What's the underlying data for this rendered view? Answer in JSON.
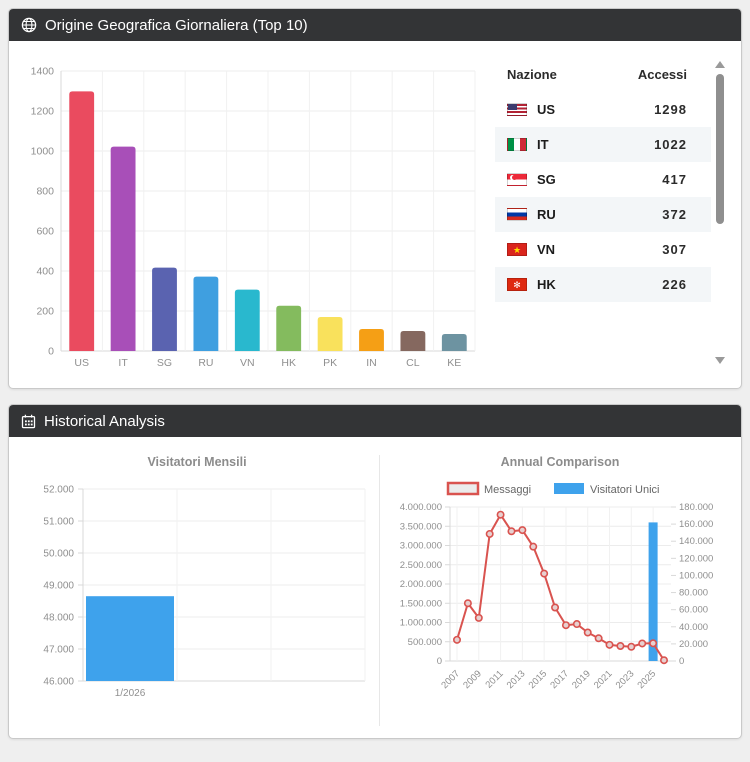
{
  "panel1": {
    "title": "Origine Geografica Giornaliera (Top 10)",
    "icon": "globe-icon",
    "table": {
      "columns": [
        "Nazione",
        "Accessi"
      ],
      "rows": [
        {
          "flag": "us",
          "code": "US",
          "accessi": "1298"
        },
        {
          "flag": "it",
          "code": "IT",
          "accessi": "1022"
        },
        {
          "flag": "sg",
          "code": "SG",
          "accessi": "417"
        },
        {
          "flag": "ru",
          "code": "RU",
          "accessi": "372"
        },
        {
          "flag": "vn",
          "code": "VN",
          "accessi": "307"
        },
        {
          "flag": "hk",
          "code": "HK",
          "accessi": "226"
        }
      ]
    }
  },
  "panel2": {
    "title": "Historical Analysis",
    "icon": "calendar-icon"
  },
  "chart_data": [
    {
      "id": "geo",
      "type": "bar",
      "title": "",
      "categories": [
        "US",
        "IT",
        "SG",
        "RU",
        "VN",
        "HK",
        "PK",
        "IN",
        "CL",
        "KE"
      ],
      "values": [
        1298,
        1022,
        417,
        372,
        307,
        226,
        170,
        110,
        100,
        85
      ],
      "colors": [
        "#ea4b5f",
        "#a84fb8",
        "#5a63b0",
        "#3f9fe0",
        "#29b8ce",
        "#84bb5e",
        "#f9e15c",
        "#f59f15",
        "#85685f",
        "#6d93a1"
      ],
      "xlabel": "",
      "ylabel": "",
      "ylim": [
        0,
        1400
      ],
      "ytick": 200,
      "grid": true
    },
    {
      "id": "monthly",
      "type": "bar",
      "title": "Visitatori Mensili",
      "categories": [
        "1/2026"
      ],
      "values": [
        48650
      ],
      "color": "#3ea2ec",
      "xlabel": "",
      "ylabel": "",
      "ylim": [
        46000,
        52000
      ],
      "ytick": 1000,
      "slots": 3,
      "grid": true,
      "tick_format": "dot-thousands"
    },
    {
      "id": "annual",
      "type": "combo",
      "title": "Annual Comparison",
      "x": [
        2007,
        2008,
        2009,
        2010,
        2011,
        2012,
        2013,
        2014,
        2015,
        2016,
        2017,
        2018,
        2019,
        2020,
        2021,
        2022,
        2023,
        2024,
        2025,
        2026
      ],
      "x_label_step": 2,
      "series": [
        {
          "name": "Messaggi",
          "type": "line",
          "axis": "left",
          "color": "#d9534f",
          "point_fill": "#e7d0d0",
          "values": [
            550000,
            1500000,
            1120000,
            3300000,
            3800000,
            3370000,
            3400000,
            2970000,
            2270000,
            1390000,
            930000,
            960000,
            740000,
            590000,
            420000,
            390000,
            370000,
            455000,
            460000,
            20000
          ]
        },
        {
          "name": "Visitatori Unici",
          "type": "bar",
          "axis": "right",
          "color": "#3ea2ec",
          "values": [
            null,
            null,
            null,
            null,
            null,
            null,
            null,
            null,
            null,
            null,
            null,
            null,
            null,
            null,
            null,
            null,
            null,
            null,
            162000,
            null
          ]
        }
      ],
      "ylim_left": [
        0,
        4000000
      ],
      "ytick_left": 500000,
      "ylim_right": [
        0,
        180000
      ],
      "ytick_right": 20000,
      "legend_position": "top",
      "grid": true,
      "tick_format": "dot-thousands"
    }
  ]
}
